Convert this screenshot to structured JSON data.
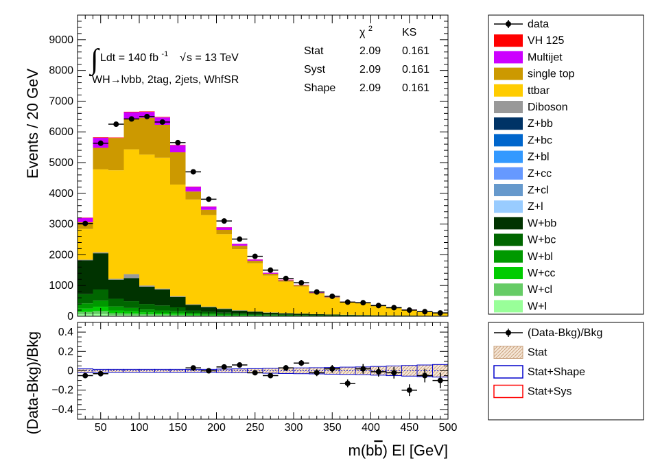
{
  "chart_data": [
    {
      "type": "bar",
      "subtype": "stacked-histogram",
      "ylabel": "Events / 20 GeV",
      "xlim": [
        20,
        500
      ],
      "ylim": [
        0,
        9800
      ],
      "yticks": [
        0,
        1000,
        2000,
        3000,
        4000,
        5000,
        6000,
        7000,
        8000,
        9000
      ],
      "bin_edges": [
        20,
        40,
        60,
        80,
        100,
        120,
        140,
        160,
        180,
        200,
        220,
        240,
        260,
        280,
        300,
        320,
        340,
        360,
        380,
        400,
        420,
        440,
        460,
        480,
        500
      ],
      "annotation": {
        "lumi_prefix": "Ldt = 140 fb",
        "lumi_exp": "-1",
        "sqrt_s": "s = 13 TeV",
        "region": "WH→lνbb, 2tag, 2jets, WhfSR"
      },
      "stat_table": {
        "headers": [
          "",
          "χ",
          "KS"
        ],
        "chi_sup": "2",
        "rows": [
          {
            "name": "Stat",
            "chi2": "2.09",
            "ks": "0.161"
          },
          {
            "name": "Syst",
            "chi2": "2.09",
            "ks": "0.161"
          },
          {
            "name": "Shape",
            "chi2": "2.09",
            "ks": "0.161"
          }
        ]
      },
      "data_points": {
        "name": "data",
        "x": [
          30,
          50,
          70,
          90,
          110,
          130,
          150,
          170,
          190,
          210,
          230,
          250,
          270,
          290,
          310,
          330,
          350,
          370,
          390,
          410,
          430,
          450,
          470,
          490
        ],
        "y": [
          3020,
          5630,
          6250,
          6420,
          6500,
          6320,
          5650,
          4700,
          3810,
          3100,
          2510,
          1950,
          1500,
          1230,
          1090,
          790,
          650,
          460,
          440,
          350,
          280,
          200,
          150,
          110
        ]
      },
      "series": [
        {
          "name": "W+l",
          "color": "#99ff99",
          "values": [
            60,
            70,
            40,
            35,
            30,
            25,
            20,
            14,
            12,
            10,
            9,
            7,
            6,
            5,
            5,
            4,
            3,
            3,
            3,
            2,
            2,
            2,
            1,
            1
          ]
        },
        {
          "name": "W+cl",
          "color": "#66cc66",
          "values": [
            80,
            100,
            60,
            50,
            40,
            35,
            30,
            20,
            16,
            12,
            10,
            8,
            7,
            6,
            5,
            4,
            4,
            3,
            3,
            2,
            2,
            2,
            1,
            1
          ]
        },
        {
          "name": "W+cc",
          "color": "#00cc00",
          "values": [
            110,
            140,
            90,
            75,
            60,
            50,
            45,
            30,
            24,
            20,
            16,
            13,
            11,
            9,
            8,
            6,
            5,
            4,
            4,
            3,
            3,
            2,
            2,
            2
          ]
        },
        {
          "name": "W+bl",
          "color": "#009900",
          "values": [
            170,
            200,
            130,
            110,
            90,
            80,
            65,
            45,
            35,
            28,
            22,
            18,
            14,
            12,
            10,
            8,
            7,
            6,
            5,
            4,
            4,
            3,
            3,
            2
          ]
        },
        {
          "name": "W+bc",
          "color": "#006600",
          "values": [
            300,
            360,
            250,
            220,
            180,
            160,
            130,
            80,
            60,
            48,
            38,
            30,
            24,
            20,
            17,
            14,
            12,
            10,
            8,
            7,
            6,
            5,
            4,
            4
          ]
        },
        {
          "name": "W+bb",
          "color": "#003300",
          "values": [
            1100,
            1180,
            620,
            750,
            560,
            520,
            340,
            180,
            150,
            120,
            90,
            70,
            55,
            45,
            38,
            30,
            25,
            20,
            16,
            13,
            11,
            9,
            7,
            6
          ]
        },
        {
          "name": "Z+l",
          "color": "#99ccff",
          "values": [
            0,
            0,
            0,
            0,
            0,
            0,
            0,
            0,
            0,
            0,
            0,
            0,
            0,
            0,
            0,
            0,
            0,
            0,
            0,
            0,
            0,
            0,
            0,
            0
          ]
        },
        {
          "name": "Z+cl",
          "color": "#6699cc",
          "values": [
            0,
            0,
            0,
            0,
            0,
            0,
            0,
            0,
            0,
            0,
            0,
            0,
            0,
            0,
            0,
            0,
            0,
            0,
            0,
            0,
            0,
            0,
            0,
            0
          ]
        },
        {
          "name": "Z+cc",
          "color": "#6699ff",
          "values": [
            0,
            0,
            0,
            0,
            0,
            0,
            0,
            0,
            0,
            0,
            0,
            0,
            0,
            0,
            0,
            0,
            0,
            0,
            0,
            0,
            0,
            0,
            0,
            0
          ]
        },
        {
          "name": "Z+bl",
          "color": "#3399ff",
          "values": [
            0,
            0,
            0,
            0,
            0,
            0,
            0,
            0,
            0,
            0,
            0,
            0,
            0,
            0,
            0,
            0,
            0,
            0,
            0,
            0,
            0,
            0,
            0,
            0
          ]
        },
        {
          "name": "Z+bc",
          "color": "#0066cc",
          "values": [
            0,
            0,
            0,
            0,
            0,
            0,
            0,
            0,
            0,
            0,
            0,
            0,
            0,
            0,
            0,
            0,
            0,
            0,
            0,
            0,
            0,
            0,
            0,
            0
          ]
        },
        {
          "name": "Z+bb",
          "color": "#003366",
          "values": [
            0,
            0,
            0,
            0,
            0,
            0,
            0,
            0,
            0,
            0,
            0,
            0,
            0,
            0,
            0,
            0,
            0,
            0,
            0,
            0,
            0,
            0,
            0,
            0
          ]
        },
        {
          "name": "Diboson",
          "color": "#999999",
          "values": [
            20,
            30,
            30,
            130,
            40,
            30,
            25,
            20,
            18,
            15,
            12,
            10,
            8,
            6,
            5,
            4,
            3,
            3,
            2,
            2,
            2,
            1,
            1,
            1
          ]
        },
        {
          "name": "ttbar",
          "color": "#ffcc00",
          "values": [
            1000,
            2700,
            3530,
            4060,
            4260,
            4260,
            3630,
            3410,
            2980,
            2420,
            1990,
            1570,
            1200,
            1020,
            880,
            660,
            540,
            400,
            370,
            300,
            240,
            180,
            130,
            95
          ]
        },
        {
          "name": "single top",
          "color": "#cc9900",
          "values": [
            220,
            700,
            1050,
            990,
            1200,
            1070,
            1050,
            260,
            170,
            140,
            105,
            80,
            60,
            48,
            40,
            28,
            22,
            18,
            15,
            12,
            10,
            8,
            6,
            5
          ]
        },
        {
          "name": "Multijet",
          "color": "#cc00ff",
          "values": [
            140,
            330,
            0,
            220,
            190,
            240,
            230,
            150,
            100,
            80,
            60,
            40,
            30,
            20,
            15,
            10,
            8,
            6,
            5,
            4,
            3,
            3,
            2,
            2
          ]
        },
        {
          "name": "VH 125",
          "color": "#ff0000",
          "values": [
            10,
            15,
            15,
            15,
            15,
            15,
            12,
            10,
            8,
            6,
            5,
            4,
            3,
            3,
            2,
            2,
            1,
            1,
            1,
            1,
            1,
            1,
            0,
            0
          ]
        }
      ],
      "legend": {
        "placement": "right",
        "entries": [
          "data",
          "VH 125",
          "Multijet",
          "single top",
          "ttbar",
          "Diboson",
          "Z+bb",
          "Z+bc",
          "Z+bl",
          "Z+cc",
          "Z+cl",
          "Z+l",
          "W+bb",
          "W+bc",
          "W+bl",
          "W+cc",
          "W+cl",
          "W+l"
        ]
      }
    },
    {
      "type": "scatter",
      "subtype": "ratio",
      "ylabel": "(Data-Bkg)/Bkg",
      "xlabel_prefix": "m(b",
      "xlabel_bbar": "b",
      "xlabel_suffix": ") El [GeV]",
      "xlim": [
        20,
        500
      ],
      "ylim": [
        -0.5,
        0.5
      ],
      "yticks": [
        -0.4,
        -0.2,
        0,
        0.2,
        0.4
      ],
      "ytick_labels": [
        "−0.4",
        "−0.2",
        "0",
        "0.2",
        "0.4"
      ],
      "xticks": [
        50,
        100,
        150,
        200,
        250,
        300,
        350,
        400,
        450,
        500
      ],
      "x": [
        30,
        50,
        70,
        90,
        110,
        130,
        150,
        170,
        190,
        210,
        230,
        250,
        270,
        290,
        310,
        330,
        350,
        370,
        390,
        410,
        430,
        450,
        470,
        490
      ],
      "y": [
        -0.05,
        -0.03,
        null,
        null,
        null,
        null,
        null,
        0.03,
        0.0,
        0.04,
        0.06,
        -0.02,
        -0.05,
        0.03,
        0.08,
        -0.02,
        0.02,
        -0.13,
        0.02,
        -0.01,
        -0.02,
        -0.2,
        -0.05,
        -0.1
      ],
      "yerr": [
        0.02,
        0.015,
        0,
        0,
        0,
        0,
        0,
        0.015,
        0.015,
        0.02,
        0.02,
        0.02,
        0.025,
        0.03,
        0.03,
        0.035,
        0.04,
        0.04,
        0.05,
        0.05,
        0.06,
        0.06,
        0.07,
        0.08
      ],
      "band_halfwidth": [
        0.02,
        0.015,
        0.015,
        0.015,
        0.015,
        0.015,
        0.015,
        0.015,
        0.015,
        0.018,
        0.02,
        0.022,
        0.025,
        0.028,
        0.03,
        0.032,
        0.035,
        0.038,
        0.04,
        0.045,
        0.05,
        0.055,
        0.06,
        0.065
      ],
      "legend": {
        "placement": "right",
        "entries": [
          {
            "name": "(Data-Bkg)/Bkg",
            "style": "marker",
            "color": "#000000"
          },
          {
            "name": "Stat",
            "style": "hatched-fill",
            "color": "#e6c9a8"
          },
          {
            "name": "Stat+Shape",
            "style": "box",
            "color": "#0000cc"
          },
          {
            "name": "Stat+Sys",
            "style": "box",
            "color": "#ff0000"
          }
        ]
      }
    }
  ]
}
